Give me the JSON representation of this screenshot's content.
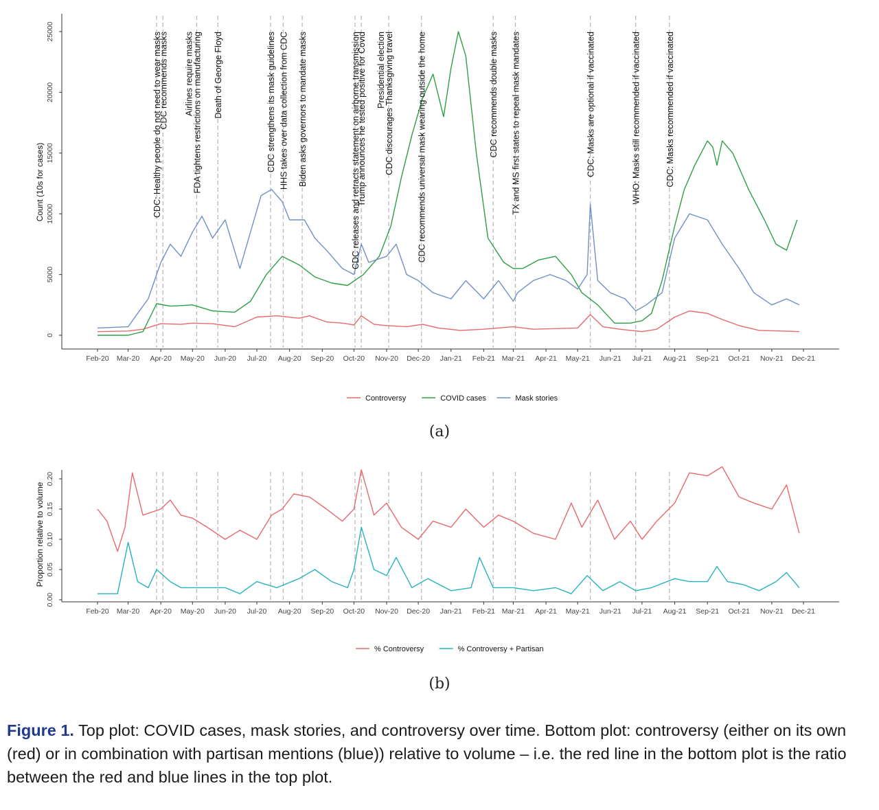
{
  "colors": {
    "controversy": "#e8686b",
    "covid": "#2ba043",
    "mask": "#6f8fc6",
    "pct_partisan": "#25b2bf",
    "caption_label": "#1f3a8f"
  },
  "chart_data": [
    {
      "type": "line",
      "panel_label": "(a)",
      "ylabel": "Count (10s for cases)",
      "ylim": [
        0,
        25000
      ],
      "yticks": [
        "0",
        "5000",
        "10000",
        "15000",
        "20000",
        "25000"
      ],
      "ytick_values": [
        0,
        5000,
        10000,
        15000,
        20000,
        25000
      ],
      "xticks": [
        "Feb-20",
        "Mar-20",
        "Apr-20",
        "May-20",
        "Jun-20",
        "Jul-20",
        "Aug-20",
        "Sep-20",
        "Oct-20",
        "Nov-20",
        "Dec-20",
        "Jan-21",
        "Feb-21",
        "Mar-21",
        "Apr-21",
        "May-21",
        "Jun-21",
        "Jul-21",
        "Aug-21",
        "Sep-21",
        "Oct-21",
        "Nov-21",
        "Dec-21"
      ],
      "grid": false,
      "legend": "bottom",
      "annotations": [
        {
          "date": "2020-03-28",
          "labels": [
            "CDC: Healthy people do not need to wear masks"
          ]
        },
        {
          "date": "2020-04-03",
          "labels": [
            "CDC recommends masks"
          ]
        },
        {
          "date": "2020-05-05",
          "labels": [
            "Airlines require masks",
            "FDA tightens restrictions on manufacturing"
          ]
        },
        {
          "date": "2020-05-25",
          "labels": [
            "Death of George Floyd"
          ]
        },
        {
          "date": "2020-07-14",
          "labels": [
            "CDC strengthens its mask guidelines"
          ]
        },
        {
          "date": "2020-07-26",
          "labels": [
            "HHS takes over data collection from CDC"
          ]
        },
        {
          "date": "2020-08-13",
          "labels": [
            "Biden asks governors to mandate masks"
          ]
        },
        {
          "date": "2020-10-02",
          "labels": [
            "CDC releases and retracts statement on airborne transmission"
          ]
        },
        {
          "date": "2020-10-08",
          "labels": [
            "Trump announces he tested positive for Covid"
          ]
        },
        {
          "date": "2020-11-03",
          "labels": [
            "Presidential election",
            "CDC discourages Thanksgiving travel"
          ]
        },
        {
          "date": "2020-12-04",
          "labels": [
            "CDC recommends universal mask wearing outside the home"
          ]
        },
        {
          "date": "2021-02-10",
          "labels": [
            "CDC recommends double masks"
          ]
        },
        {
          "date": "2021-03-03",
          "labels": [
            "TX and MS first states to repeal mask mandates"
          ]
        },
        {
          "date": "2021-05-13",
          "labels": [
            "CDC: Masks are optional if vaccinated"
          ]
        },
        {
          "date": "2021-06-25",
          "labels": [
            "WHO: Masks still recommended if vaccinated"
          ]
        },
        {
          "date": "2021-07-27",
          "labels": [
            "CDC: Masks recommended if vaccinated"
          ]
        }
      ],
      "series": [
        {
          "name": "Controversy",
          "x": [
            "2020-02-01",
            "2020-03-01",
            "2020-03-15",
            "2020-04-01",
            "2020-04-20",
            "2020-05-01",
            "2020-05-20",
            "2020-06-10",
            "2020-07-01",
            "2020-07-20",
            "2020-08-10",
            "2020-08-20",
            "2020-09-05",
            "2020-09-20",
            "2020-10-01",
            "2020-10-08",
            "2020-10-20",
            "2020-11-01",
            "2020-11-20",
            "2020-12-05",
            "2020-12-20",
            "2021-01-10",
            "2021-02-01",
            "2021-03-01",
            "2021-03-20",
            "2021-04-10",
            "2021-05-01",
            "2021-05-13",
            "2021-05-25",
            "2021-06-10",
            "2021-07-01",
            "2021-07-15",
            "2021-08-01",
            "2021-08-15",
            "2021-09-01",
            "2021-09-15",
            "2021-10-01",
            "2021-10-20",
            "2021-11-10",
            "2021-11-27"
          ],
          "values": [
            300,
            350,
            500,
            950,
            900,
            1000,
            950,
            700,
            1500,
            1600,
            1400,
            1600,
            1100,
            1000,
            850,
            1600,
            900,
            800,
            700,
            900,
            600,
            400,
            500,
            700,
            500,
            550,
            600,
            1700,
            700,
            500,
            300,
            500,
            1500,
            2000,
            1800,
            1300,
            800,
            400,
            350,
            300
          ]
        },
        {
          "name": "COVID cases",
          "x": [
            "2020-02-01",
            "2020-03-01",
            "2020-03-15",
            "2020-03-28",
            "2020-04-10",
            "2020-05-01",
            "2020-05-20",
            "2020-06-10",
            "2020-06-25",
            "2020-07-10",
            "2020-07-25",
            "2020-08-10",
            "2020-08-25",
            "2020-09-10",
            "2020-09-25",
            "2020-10-10",
            "2020-10-25",
            "2020-11-05",
            "2020-11-15",
            "2020-11-25",
            "2020-12-05",
            "2020-12-15",
            "2020-12-25",
            "2021-01-01",
            "2021-01-08",
            "2021-01-15",
            "2021-01-25",
            "2021-02-05",
            "2021-02-20",
            "2021-03-01",
            "2021-03-10",
            "2021-03-25",
            "2021-04-10",
            "2021-04-25",
            "2021-05-05",
            "2021-05-20",
            "2021-06-05",
            "2021-06-20",
            "2021-07-01",
            "2021-07-10",
            "2021-07-20",
            "2021-08-01",
            "2021-08-10",
            "2021-08-20",
            "2021-09-01",
            "2021-09-06",
            "2021-09-10",
            "2021-09-15",
            "2021-09-25",
            "2021-10-10",
            "2021-10-25",
            "2021-11-05",
            "2021-11-15",
            "2021-11-25"
          ],
          "values": [
            0,
            0,
            300,
            2600,
            2400,
            2500,
            2000,
            1900,
            2800,
            5000,
            6500,
            5800,
            4800,
            4300,
            4100,
            5000,
            6500,
            9000,
            13000,
            16500,
            19500,
            21500,
            18000,
            22000,
            25000,
            23000,
            15000,
            8000,
            6000,
            5500,
            5500,
            6200,
            6500,
            5000,
            3500,
            2500,
            1000,
            1000,
            1200,
            1800,
            4500,
            9000,
            12000,
            14000,
            16000,
            15500,
            14000,
            16000,
            15000,
            12000,
            9500,
            7500,
            7000,
            9500
          ]
        },
        {
          "name": "Mask stories",
          "x": [
            "2020-02-01",
            "2020-03-01",
            "2020-03-10",
            "2020-03-20",
            "2020-04-01",
            "2020-04-10",
            "2020-04-20",
            "2020-05-01",
            "2020-05-10",
            "2020-05-20",
            "2020-06-01",
            "2020-06-15",
            "2020-06-25",
            "2020-07-05",
            "2020-07-15",
            "2020-07-25",
            "2020-08-01",
            "2020-08-15",
            "2020-08-25",
            "2020-09-05",
            "2020-09-20",
            "2020-10-01",
            "2020-10-08",
            "2020-10-15",
            "2020-11-01",
            "2020-11-10",
            "2020-11-20",
            "2020-12-01",
            "2020-12-15",
            "2021-01-01",
            "2021-01-15",
            "2021-02-01",
            "2021-02-15",
            "2021-03-01",
            "2021-03-05",
            "2021-03-20",
            "2021-04-05",
            "2021-04-20",
            "2021-05-01",
            "2021-05-10",
            "2021-05-13",
            "2021-05-20",
            "2021-06-01",
            "2021-06-15",
            "2021-06-25",
            "2021-07-05",
            "2021-07-20",
            "2021-08-01",
            "2021-08-15",
            "2021-09-01",
            "2021-09-15",
            "2021-10-01",
            "2021-10-15",
            "2021-11-01",
            "2021-11-15",
            "2021-11-27"
          ],
          "values": [
            600,
            700,
            1800,
            3000,
            6000,
            7500,
            6500,
            8500,
            9800,
            8000,
            9500,
            5500,
            8500,
            11500,
            12000,
            11000,
            9500,
            9500,
            8000,
            7000,
            5500,
            5000,
            7500,
            6000,
            6500,
            7500,
            5000,
            4500,
            3500,
            3000,
            4500,
            3000,
            4500,
            2800,
            3500,
            4500,
            5000,
            4500,
            3800,
            5000,
            10800,
            4500,
            3500,
            3000,
            2000,
            2500,
            3500,
            8000,
            10000,
            9500,
            7500,
            5500,
            3500,
            2500,
            3000,
            2500
          ]
        }
      ]
    },
    {
      "type": "line",
      "panel_label": "(b)",
      "ylabel": "Proportion relative to volume",
      "ylim": [
        0,
        0.225
      ],
      "yticks": [
        "0.00",
        "0.05",
        "0.10",
        "0.15",
        "0.20"
      ],
      "ytick_values": [
        0,
        0.05,
        0.1,
        0.15,
        0.2
      ],
      "xticks": [
        "Feb-20",
        "Mar-20",
        "Apr-20",
        "May-20",
        "Jun-20",
        "Jul-20",
        "Aug-20",
        "Sep-20",
        "Oct-20",
        "Nov-20",
        "Dec-20",
        "Jan-21",
        "Feb-21",
        "Mar-21",
        "Apr-21",
        "May-21",
        "Jun-21",
        "Jul-21",
        "Aug-21",
        "Sep-21",
        "Oct-21",
        "Nov-21",
        "Dec-21"
      ],
      "grid": false,
      "legend": "bottom",
      "series": [
        {
          "name": "% Controversy",
          "x": [
            "2020-02-01",
            "2020-02-10",
            "2020-02-20",
            "2020-02-27",
            "2020-03-05",
            "2020-03-15",
            "2020-04-01",
            "2020-04-10",
            "2020-04-20",
            "2020-05-01",
            "2020-05-15",
            "2020-06-01",
            "2020-06-15",
            "2020-07-01",
            "2020-07-15",
            "2020-07-25",
            "2020-08-05",
            "2020-08-20",
            "2020-09-05",
            "2020-09-20",
            "2020-10-01",
            "2020-10-08",
            "2020-10-20",
            "2020-11-01",
            "2020-11-15",
            "2020-12-01",
            "2020-12-15",
            "2021-01-01",
            "2021-01-15",
            "2021-02-01",
            "2021-02-15",
            "2021-03-01",
            "2021-03-20",
            "2021-04-10",
            "2021-04-25",
            "2021-05-05",
            "2021-05-20",
            "2021-06-05",
            "2021-06-20",
            "2021-07-01",
            "2021-07-15",
            "2021-08-01",
            "2021-08-15",
            "2021-09-01",
            "2021-09-15",
            "2021-10-01",
            "2021-10-15",
            "2021-11-01",
            "2021-11-15",
            "2021-11-27"
          ],
          "values": [
            0.15,
            0.13,
            0.08,
            0.12,
            0.21,
            0.14,
            0.15,
            0.165,
            0.14,
            0.135,
            0.12,
            0.1,
            0.115,
            0.1,
            0.14,
            0.15,
            0.175,
            0.17,
            0.15,
            0.13,
            0.15,
            0.215,
            0.14,
            0.16,
            0.12,
            0.1,
            0.13,
            0.12,
            0.15,
            0.12,
            0.14,
            0.13,
            0.11,
            0.1,
            0.16,
            0.12,
            0.165,
            0.1,
            0.13,
            0.1,
            0.13,
            0.16,
            0.21,
            0.205,
            0.22,
            0.17,
            0.16,
            0.15,
            0.19,
            0.11
          ]
        },
        {
          "name": "% Controversy + Partisan",
          "x": [
            "2020-02-01",
            "2020-02-20",
            "2020-03-01",
            "2020-03-10",
            "2020-03-20",
            "2020-03-28",
            "2020-04-10",
            "2020-04-20",
            "2020-05-10",
            "2020-06-01",
            "2020-06-15",
            "2020-07-01",
            "2020-07-20",
            "2020-08-10",
            "2020-08-25",
            "2020-09-10",
            "2020-09-25",
            "2020-10-01",
            "2020-10-08",
            "2020-10-20",
            "2020-11-01",
            "2020-11-10",
            "2020-11-25",
            "2020-12-10",
            "2021-01-01",
            "2021-01-20",
            "2021-01-28",
            "2021-02-10",
            "2021-03-01",
            "2021-03-20",
            "2021-04-10",
            "2021-04-25",
            "2021-05-10",
            "2021-05-25",
            "2021-06-10",
            "2021-06-25",
            "2021-07-10",
            "2021-08-01",
            "2021-08-15",
            "2021-09-01",
            "2021-09-10",
            "2021-09-20",
            "2021-10-05",
            "2021-10-20",
            "2021-11-05",
            "2021-11-15",
            "2021-11-27"
          ],
          "values": [
            0.01,
            0.01,
            0.095,
            0.03,
            0.02,
            0.05,
            0.03,
            0.02,
            0.02,
            0.02,
            0.01,
            0.03,
            0.02,
            0.035,
            0.05,
            0.03,
            0.02,
            0.05,
            0.12,
            0.05,
            0.04,
            0.07,
            0.02,
            0.035,
            0.015,
            0.02,
            0.07,
            0.02,
            0.02,
            0.015,
            0.02,
            0.01,
            0.04,
            0.015,
            0.03,
            0.015,
            0.02,
            0.035,
            0.03,
            0.03,
            0.055,
            0.03,
            0.025,
            0.015,
            0.03,
            0.045,
            0.02
          ]
        }
      ]
    }
  ],
  "caption": {
    "label": "Figure 1.",
    "text": " Top plot: COVID cases, mask stories, and controversy over time. Bottom plot: controversy (either on its own (red) or in combination with partisan mentions (blue)) relative to volume – i.e. the red line in the bottom plot is the ratio between the red and blue lines in the top plot."
  }
}
